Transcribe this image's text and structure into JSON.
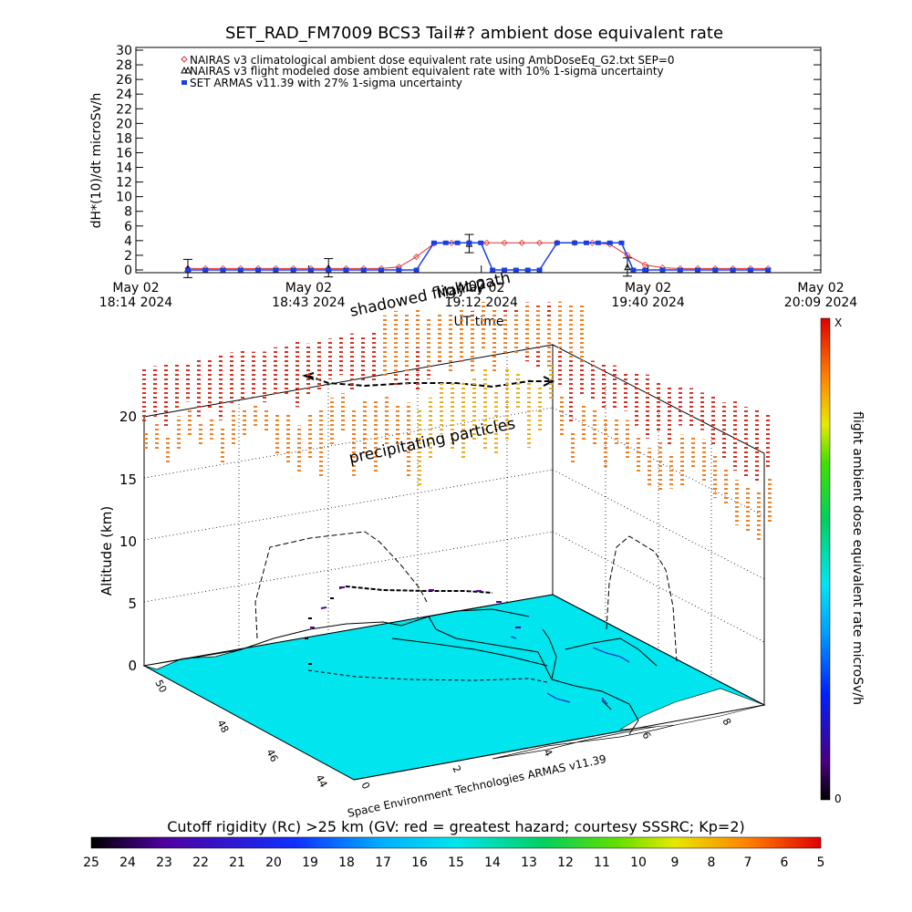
{
  "chart_data": [
    {
      "type": "line",
      "title": "SET_RAD_FM7009  BCS3 Tail#? ambient dose equivalent rate",
      "ylabel": "dH*(10)/dt microSv/h",
      "xlabel": "UT time",
      "ylim": [
        0,
        30
      ],
      "yticks": [
        "0",
        "2",
        "4",
        "6",
        "8",
        "10",
        "12",
        "14",
        "16",
        "18",
        "20",
        "22",
        "24",
        "26",
        "28",
        "30"
      ],
      "xlim_minutes": [
        0,
        115
      ],
      "xticks": [
        {
          "minute": 0,
          "label1": "May 02",
          "label2": "18:14 2024"
        },
        {
          "minute": 29,
          "label1": "May 02",
          "label2": "18:43 2024"
        },
        {
          "minute": 58,
          "label1": "May 02",
          "label2": "19:12 2024"
        },
        {
          "minute": 86,
          "label1": "May 02",
          "label2": "19:40 2024"
        },
        {
          "minute": 115,
          "label1": "May 02",
          "label2": "20:09 2024"
        }
      ],
      "legend": [
        "NAIRAS v3 climatological ambient dose equivalent rate using AmbDoseEq_G2.txt SEP=0",
        "NAIRAS v3 flight modeled dose ambient equivalent rate with 10% 1-sigma uncertainty",
        "SET ARMAS v11.39 with 27% 1-sigma uncertainty"
      ],
      "series": [
        {
          "name": "NAIRAS v3 climatological ambient dose equivalent rate using AmbDoseEq_G2.txt SEP=0",
          "color": "#e03030",
          "marker": "diamond",
          "x": [
            7,
            10,
            13,
            16,
            19,
            22,
            25,
            28,
            31,
            34,
            37,
            40,
            43,
            46,
            49,
            52,
            55,
            58,
            61,
            64,
            67,
            70,
            73,
            76,
            79,
            82,
            85,
            88,
            91,
            94,
            97,
            100,
            103,
            106
          ],
          "y": [
            0.2,
            0.2,
            0.2,
            0.2,
            0.2,
            0.2,
            0.2,
            0.2,
            0.2,
            0.2,
            0.2,
            0.2,
            0.4,
            1.8,
            3.6,
            3.7,
            3.7,
            3.7,
            3.7,
            3.7,
            3.7,
            3.7,
            3.7,
            3.7,
            3.5,
            2.0,
            0.7,
            0.3,
            0.2,
            0.2,
            0.2,
            0.2,
            0.2,
            0.2
          ]
        },
        {
          "name": "NAIRAS v3 flight modeled dose ambient equivalent rate with 10% 1-sigma uncertainty",
          "color": "#000000",
          "marker": "triangle",
          "x": [
            7,
            31,
            55,
            82
          ],
          "y": [
            0.2,
            0.3,
            3.6,
            0.4
          ]
        },
        {
          "name": "SET ARMAS v11.39 with 27% 1-sigma uncertainty",
          "color": "#1a3fe0",
          "marker": "square",
          "x": [
            7,
            10,
            13,
            16,
            19,
            22,
            25,
            28,
            31,
            34,
            37,
            40,
            43,
            46,
            49,
            51,
            53,
            55,
            57,
            59,
            61,
            63,
            65,
            67,
            70,
            73,
            75,
            77,
            79,
            81,
            83,
            85,
            88,
            91,
            94,
            97,
            100,
            103,
            106
          ],
          "y": [
            0,
            0,
            0,
            0,
            0,
            0,
            0,
            0,
            0,
            0,
            0,
            0,
            0,
            0,
            3.7,
            3.7,
            3.7,
            3.7,
            3.7,
            0,
            0,
            0,
            0,
            0,
            3.7,
            3.7,
            3.7,
            3.7,
            3.7,
            3.7,
            0,
            0,
            0,
            0,
            0,
            0,
            0,
            0,
            0
          ]
        }
      ]
    },
    {
      "type": "3d-flight-track",
      "zlabel": "Altitude (km)",
      "zticks": [
        "0",
        "5",
        "10",
        "15",
        "20"
      ],
      "lat_ticks": [
        "50",
        "48",
        "46",
        "44"
      ],
      "lon_ticks": [
        "0",
        "2",
        "4",
        "6",
        "8"
      ],
      "annotations": [
        "shadowed flight path",
        "May 02",
        "precipitating particles",
        "Space Environment Technologies ARMAS v11.39"
      ],
      "colorbar_label": "flight ambient dose equivalent rate microSv/h",
      "colorbar_max": "X",
      "colorbar_min": "0"
    }
  ],
  "rigidity_bar": {
    "title": "Cutoff rigidity (Rc) >25 km (GV: red = greatest hazard; courtesy SSSRC; Kp=2)",
    "labels": [
      "25",
      "24",
      "23",
      "22",
      "21",
      "20",
      "19",
      "18",
      "17",
      "16",
      "15",
      "14",
      "13",
      "12",
      "11",
      "10",
      "9",
      "8",
      "7",
      "6",
      "5"
    ]
  }
}
